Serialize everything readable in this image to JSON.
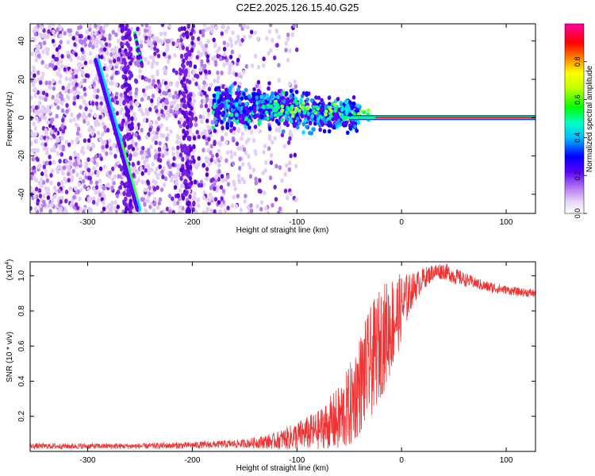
{
  "figure": {
    "title": "C2E2.2025.126.15.40.G25"
  },
  "chart_data": [
    {
      "type": "heatmap",
      "xlabel": "Height of straight line (km)",
      "ylabel": "Frequency (Hz)",
      "xlim": [
        -355,
        128
      ],
      "ylim": [
        -50,
        49
      ],
      "x_ticks": [
        -300,
        -200,
        -100,
        0,
        100
      ],
      "x_tick_labels": [
        "-300",
        "-200",
        "-100",
        "0",
        "100"
      ],
      "y_ticks": [
        -40,
        -20,
        0,
        20,
        40
      ],
      "y_tick_labels": [
        "-40",
        "-20",
        "0",
        "20",
        "40"
      ],
      "colorbar": {
        "label": "Normalized spectral amplitude",
        "range": [
          0,
          1
        ],
        "ticks": [
          0.0,
          0.2,
          0.4,
          0.6,
          0.8
        ],
        "tick_labels": [
          "0.0",
          "0.2",
          "0.4",
          "0.6",
          "0.8"
        ],
        "colors": [
          "#ffffff",
          "#d9b8f5",
          "#8a2be2",
          "#0000ff",
          "#00e5ff",
          "#00ff00",
          "#ffff00",
          "#ff8000",
          "#ff0000",
          "#ff00ff"
        ]
      },
      "features": {
        "diagonal_streak": {
          "x": [
            -290,
            -250
          ],
          "y": [
            30,
            -48
          ]
        },
        "horizontal_line": {
          "x": [
            -50,
            128
          ],
          "y": 0
        },
        "scatter_cloud_x": [
          -355,
          -140
        ],
        "band_x": [
          -180,
          -40
        ]
      }
    },
    {
      "type": "line",
      "xlabel": "Height of straight line (km)",
      "ylabel": "SNR (10 * v/v)",
      "y_exponent_label": "(x10",
      "y_exponent": "4",
      "xlim": [
        -355,
        128
      ],
      "ylim": [
        0.0,
        1.08
      ],
      "x_ticks": [
        -300,
        -200,
        -100,
        0,
        100
      ],
      "x_tick_labels": [
        "-300",
        "-200",
        "-100",
        "0",
        "100"
      ],
      "y_ticks": [
        0.2,
        0.4,
        0.6,
        0.8,
        1.0
      ],
      "y_tick_labels": [
        "0.2",
        "0.4",
        "0.6",
        "0.8",
        "1.0"
      ],
      "line_color": "#ee3333",
      "series": [
        {
          "x": [
            -355,
            -300,
            -250,
            -200,
            -150,
            -120,
            -100,
            -80,
            -60,
            -50,
            -40,
            -30,
            -20,
            -10,
            0,
            10,
            20,
            30,
            40,
            50,
            60,
            70,
            80,
            90,
            100,
            110,
            128
          ],
          "y": [
            0.03,
            0.03,
            0.03,
            0.035,
            0.045,
            0.06,
            0.09,
            0.12,
            0.18,
            0.25,
            0.38,
            0.5,
            0.62,
            0.72,
            0.82,
            0.92,
            0.98,
            1.02,
            1.03,
            1.0,
            0.98,
            0.96,
            0.94,
            0.93,
            0.92,
            0.91,
            0.9
          ],
          "noise_amplitude": [
            0.01,
            0.01,
            0.01,
            0.012,
            0.015,
            0.03,
            0.05,
            0.07,
            0.12,
            0.15,
            0.18,
            0.2,
            0.2,
            0.18,
            0.12,
            0.06,
            0.04,
            0.03,
            0.03,
            0.03,
            0.025,
            0.02,
            0.02,
            0.02,
            0.015,
            0.015,
            0.015
          ]
        }
      ]
    }
  ]
}
